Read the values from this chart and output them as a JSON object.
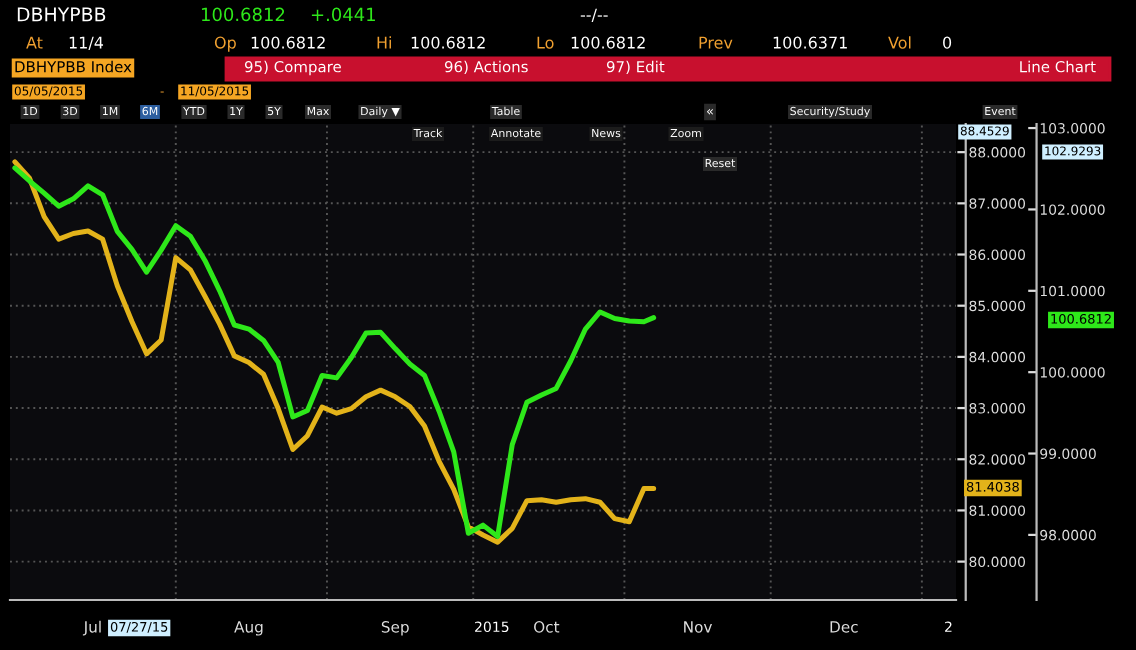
{
  "chart_data": {
    "type": "line",
    "title": "DBHYPBB",
    "annotations": [
      "100.6812",
      "+.0441",
      "--/--",
      "At",
      "11/4",
      "Op",
      "100.6812",
      "Hi",
      "100.6812",
      "Lo",
      "100.6812",
      "Prev",
      "100.6371",
      "Vol",
      "0",
      "DBHYPBB Index",
      "95) Compare",
      "96) Actions",
      "97) Edit",
      "Line Chart",
      "05/05/2015",
      "-",
      "11/05/2015",
      "1D",
      "3D",
      "1M",
      "6M",
      "YTD",
      "1Y",
      "5Y",
      "Max",
      "Daily ▼",
      "Table",
      "«",
      "Security/Study",
      "Event",
      "Track",
      "Annotate",
      "News",
      "Zoom",
      "Reset",
      "88.4529",
      "102.9293",
      "100.6812",
      "81.4038",
      "07/27/15",
      "2015",
      "2"
    ],
    "x": [
      "2015-06-29",
      "2015-07-02",
      "2015-07-05",
      "2015-07-08",
      "2015-07-11",
      "2015-07-14",
      "2015-07-17",
      "2015-07-20",
      "2015-07-23",
      "2015-07-26",
      "2015-07-29",
      "2015-08-01",
      "2015-08-04",
      "2015-08-07",
      "2015-08-10",
      "2015-08-13",
      "2015-08-16",
      "2015-08-19",
      "2015-08-22",
      "2015-08-25",
      "2015-08-28",
      "2015-08-31",
      "2015-09-03",
      "2015-09-06",
      "2015-09-09",
      "2015-09-12",
      "2015-09-15",
      "2015-09-18",
      "2015-09-21",
      "2015-09-24",
      "2015-09-27",
      "2015-09-30",
      "2015-10-03",
      "2015-10-06",
      "2015-10-09",
      "2015-10-12",
      "2015-10-15",
      "2015-10-18",
      "2015-10-21",
      "2015-10-24",
      "2015-10-27",
      "2015-10-30",
      "2015-11-02",
      "2015-11-05",
      "2015-11-07"
    ],
    "series": [
      {
        "color": "#e3b31a",
        "axis": "y",
        "values": [
          87.81,
          87.49,
          86.74,
          86.3,
          86.41,
          86.46,
          86.3,
          85.39,
          84.69,
          84.06,
          84.33,
          85.94,
          85.7,
          85.18,
          84.64,
          84.02,
          83.89,
          83.66,
          82.99,
          82.19,
          82.46,
          83.02,
          82.9,
          82.99,
          83.22,
          83.35,
          83.22,
          83.03,
          82.65,
          81.96,
          81.41,
          80.68,
          80.52,
          80.38,
          80.65,
          81.19,
          81.21,
          81.16,
          81.21,
          81.23,
          81.16,
          80.84,
          80.78,
          81.43,
          81.43
        ]
      },
      {
        "color": "#2ee81a",
        "axis": "y2",
        "values": [
          102.51,
          102.35,
          102.2,
          102.04,
          102.13,
          102.29,
          102.18,
          101.73,
          101.51,
          101.23,
          101.5,
          101.8,
          101.67,
          101.37,
          101.0,
          100.58,
          100.53,
          100.39,
          100.12,
          99.45,
          99.53,
          99.96,
          99.93,
          100.18,
          100.48,
          100.49,
          100.29,
          100.1,
          99.96,
          99.52,
          99.02,
          98.02,
          98.12,
          97.98,
          99.11,
          99.63,
          99.72,
          99.8,
          100.14,
          100.53,
          100.74,
          100.66,
          100.63,
          100.62,
          100.67
        ]
      }
    ],
    "xlim": [
      "2015-06-28",
      "2016-01-08"
    ],
    "xticks": [
      {
        "value": "2015-07-15",
        "label": "Jul"
      },
      {
        "value": "2015-08-01",
        "label": null
      },
      {
        "value": "2015-08-16",
        "label": "Aug"
      },
      {
        "value": "2015-09-01",
        "label": null
      },
      {
        "value": "2015-09-15",
        "label": "Sep"
      },
      {
        "value": "2015-10-01",
        "label": null
      },
      {
        "value": "2015-10-16",
        "label": "Oct"
      },
      {
        "value": "2015-11-01",
        "label": null
      },
      {
        "value": "2015-11-16",
        "label": "Nov"
      },
      {
        "value": "2015-12-01",
        "label": null
      },
      {
        "value": "2015-12-16",
        "label": "Dec"
      },
      {
        "value": "2016-01-01",
        "label": null
      }
    ],
    "ylim": [
      79.25,
      88.55
    ],
    "yticks": [
      {
        "value": 80,
        "label": "80.0000"
      },
      {
        "value": 81,
        "label": "81.0000"
      },
      {
        "value": 82,
        "label": "82.0000"
      },
      {
        "value": 83,
        "label": "83.0000"
      },
      {
        "value": 84,
        "label": "84.0000"
      },
      {
        "value": 85,
        "label": "85.0000"
      },
      {
        "value": 86,
        "label": "86.0000"
      },
      {
        "value": 87,
        "label": "87.0000"
      },
      {
        "value": 88,
        "label": "88.0000"
      }
    ],
    "y2lim": [
      97.2,
      103.05
    ],
    "y2ticks": [
      {
        "value": 98,
        "label": "98.0000"
      },
      {
        "value": 99,
        "label": "99.0000"
      },
      {
        "value": 100,
        "label": "100.0000"
      },
      {
        "value": 101,
        "label": "101.0000"
      },
      {
        "value": 102,
        "label": "102.0000"
      },
      {
        "value": 103,
        "label": "103.0000"
      }
    ],
    "grid": true
  }
}
